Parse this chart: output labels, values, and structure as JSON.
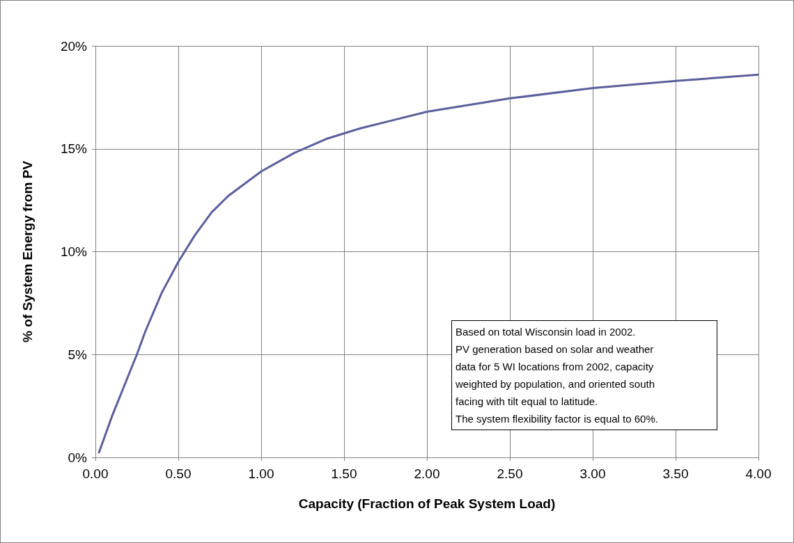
{
  "chart_data": {
    "type": "line",
    "xlabel": "Capacity (Fraction of Peak System Load)",
    "ylabel": "% of System Energy from PV",
    "x": [
      0.02,
      0.1,
      0.2,
      0.25,
      0.3,
      0.4,
      0.5,
      0.6,
      0.7,
      0.8,
      0.9,
      1.0,
      1.2,
      1.4,
      1.6,
      1.8,
      2.0,
      2.5,
      3.0,
      3.5,
      4.0
    ],
    "series": [
      {
        "color": "#5b5e9b",
        "values": [
          0.2,
          2.0,
          4.0,
          5.0,
          6.1,
          8.0,
          9.5,
          10.8,
          11.9,
          12.7,
          13.3,
          13.9,
          14.8,
          15.5,
          16.0,
          16.4,
          16.8,
          17.45,
          17.95,
          18.3,
          18.6
        ]
      }
    ],
    "xlim": [
      0,
      4
    ],
    "xticks": [
      {
        "value": 0,
        "label": "0.00"
      },
      {
        "value": 0.5,
        "label": "0.50"
      },
      {
        "value": 1,
        "label": "1.00"
      },
      {
        "value": 1.5,
        "label": "1.50"
      },
      {
        "value": 2,
        "label": "2.00"
      },
      {
        "value": 2.5,
        "label": "2.50"
      },
      {
        "value": 3,
        "label": "3.00"
      },
      {
        "value": 3.5,
        "label": "3.50"
      },
      {
        "value": 4,
        "label": "4.00"
      }
    ],
    "ylim": [
      0,
      20
    ],
    "yticks": [
      {
        "value": 0,
        "label": "0%"
      },
      {
        "value": 5,
        "label": "5%"
      },
      {
        "value": 10,
        "label": "10%"
      },
      {
        "value": 15,
        "label": "15%"
      },
      {
        "value": 20,
        "label": "20%"
      }
    ],
    "grid": true,
    "marker": "none",
    "line_style": "solid",
    "annotations": [
      "Based on total Wisconsin load in 2002.",
      "PV generation based on solar and weather",
      "data for 5 WI locations from 2002, capacity",
      "weighted by population, and oriented south",
      "facing with tilt equal to latitude.",
      "The system flexibility factor is equal to 60%."
    ]
  }
}
